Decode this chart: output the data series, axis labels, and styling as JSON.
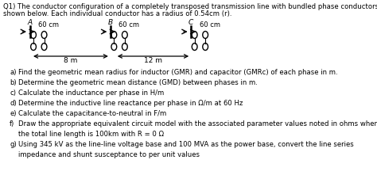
{
  "title_line1": "Q1) The conductor configuration of a completely transposed transmission line with bundled phase conductors is",
  "title_line2": "shown below. Each individual conductor has a radius of 0.54cm (r).",
  "background_color": "#ffffff",
  "text_color": "#000000",
  "phase_labels": [
    "A",
    "B",
    "C"
  ],
  "spacing_labels": [
    "60 cm",
    "60 cm",
    "60 cm"
  ],
  "distance_labels": [
    "8 m",
    "12 m"
  ],
  "q_labels": [
    "a)",
    "b)",
    "c)",
    "d)",
    "e)",
    "f)",
    "",
    "g)",
    ""
  ],
  "q_texts": [
    "Find the geometric mean radius for inductor (GMR) and capacitor (GMRᴄ) of each phase in m.",
    "Determine the geometric mean distance (GMD) between phases in m.",
    "Calculate the inductance per phase in H/m",
    "Determine the inductive line reactance per phase in Ω/m at 60 Hz",
    "Calculate the capacitance-to-neutral in F/m",
    "Draw the appropriate equivalent circuit model with the associated parameter values noted in ohms when",
    "the total line length is 100km with R = 0 Ω",
    "Using 345 kV as the line-line voltage base and 100 MVA as the power base, convert the line series",
    "impedance and shunt susceptance to per unit values"
  ]
}
